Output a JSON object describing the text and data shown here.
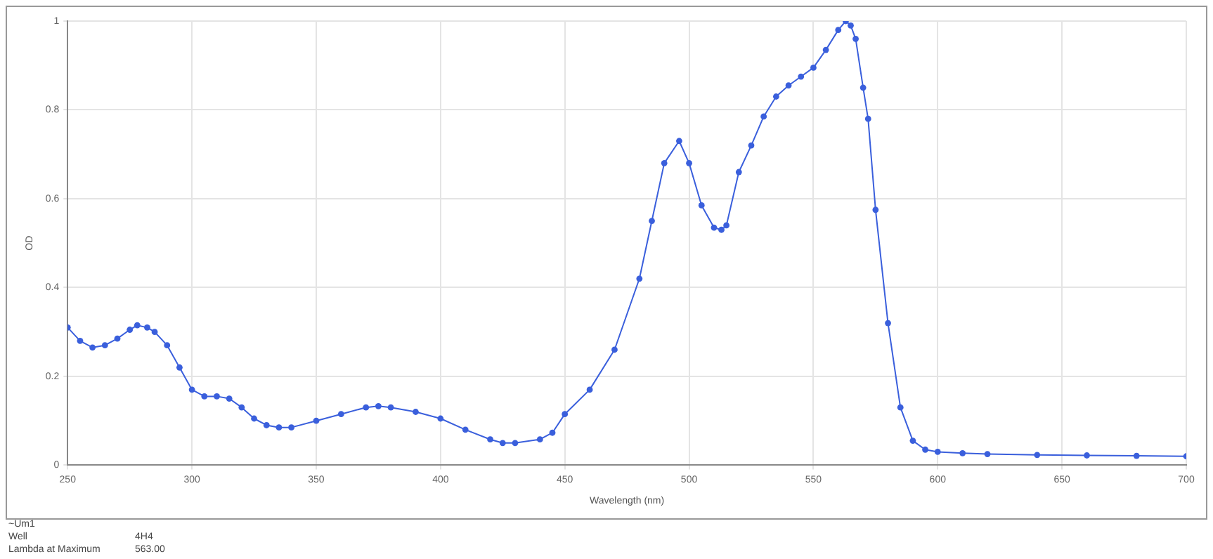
{
  "chart_data": {
    "type": "line",
    "xlabel": "Wavelength (nm)",
    "ylabel": "OD",
    "annotations": [
      "~Um1",
      "Well",
      "4H4",
      "Lambda at Maximum",
      "563.00"
    ],
    "x": [
      250,
      255,
      260,
      265,
      270,
      275,
      278,
      282,
      285,
      290,
      295,
      300,
      305,
      310,
      315,
      320,
      325,
      330,
      335,
      340,
      350,
      360,
      370,
      375,
      380,
      390,
      400,
      410,
      420,
      425,
      430,
      440,
      445,
      450,
      460,
      470,
      480,
      485,
      490,
      496,
      500,
      505,
      510,
      513,
      515,
      520,
      525,
      530,
      535,
      540,
      545,
      550,
      555,
      560,
      563,
      565,
      567,
      570,
      572,
      575,
      580,
      585,
      590,
      595,
      600,
      610,
      620,
      640,
      660,
      680,
      700
    ],
    "series": [
      {
        "color": "#3a5fdc",
        "values": [
          0.31,
          0.28,
          0.265,
          0.27,
          0.285,
          0.305,
          0.315,
          0.31,
          0.3,
          0.27,
          0.22,
          0.17,
          0.155,
          0.155,
          0.15,
          0.13,
          0.105,
          0.09,
          0.085,
          0.085,
          0.1,
          0.115,
          0.13,
          0.133,
          0.13,
          0.12,
          0.105,
          0.08,
          0.058,
          0.05,
          0.05,
          0.058,
          0.073,
          0.115,
          0.17,
          0.26,
          0.42,
          0.55,
          0.68,
          0.73,
          0.68,
          0.585,
          0.535,
          0.53,
          0.54,
          0.66,
          0.72,
          0.785,
          0.83,
          0.855,
          0.875,
          0.895,
          0.935,
          0.98,
          1,
          0.99,
          0.96,
          0.85,
          0.78,
          0.575,
          0.32,
          0.13,
          0.055,
          0.035,
          0.03,
          0.027,
          0.025,
          0.023,
          0.022,
          0.021,
          0.02
        ]
      }
    ],
    "xlim": [
      250,
      700
    ],
    "xticks": [
      250,
      300,
      350,
      400,
      450,
      500,
      550,
      600,
      650,
      700
    ],
    "ylim": [
      0,
      1
    ],
    "yticks": [
      0,
      0.2,
      0.4,
      0.6,
      0.8,
      1
    ],
    "grid": true,
    "legend": false,
    "marker": "circle",
    "line_style": "solid"
  }
}
